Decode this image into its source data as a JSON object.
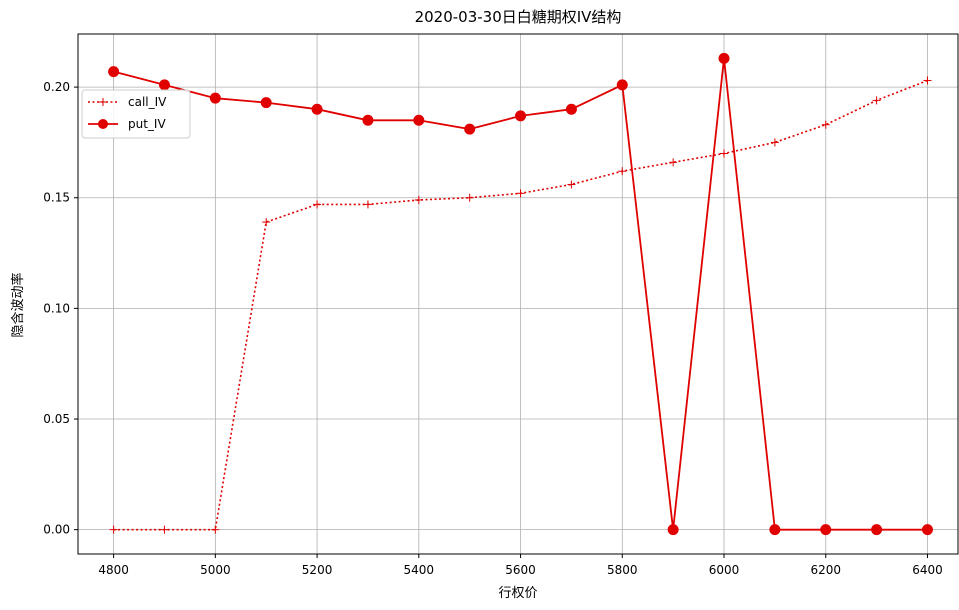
{
  "chart_data": {
    "type": "line",
    "title": "2020-03-30日白糖期权IV结构",
    "xlabel": "行权价",
    "ylabel": "隐含波动率",
    "x": [
      4800,
      4900,
      5000,
      5100,
      5200,
      5300,
      5400,
      5500,
      5600,
      5700,
      5800,
      5900,
      6000,
      6100,
      6200,
      6300,
      6400
    ],
    "xlim": [
      4730,
      6460
    ],
    "ylim": [
      -0.011,
      0.224
    ],
    "x_ticks": [
      "4800",
      "5000",
      "5200",
      "5400",
      "5600",
      "5800",
      "6000",
      "6200",
      "6400"
    ],
    "y_ticks": [
      "0.00",
      "0.05",
      "0.10",
      "0.15",
      "0.20"
    ],
    "grid": true,
    "legend_position": "upper-left",
    "series": [
      {
        "name": "call_IV",
        "color": "#e00000",
        "line_style": "dotted",
        "marker": "plus",
        "values": [
          0.0,
          0.0,
          0.0,
          0.139,
          0.147,
          0.147,
          0.149,
          0.15,
          0.152,
          0.156,
          0.162,
          0.166,
          0.17,
          0.175,
          0.183,
          0.194,
          0.203
        ]
      },
      {
        "name": "put_IV",
        "color": "#e00000",
        "line_style": "solid",
        "marker": "circle",
        "values": [
          0.207,
          0.201,
          0.195,
          0.193,
          0.19,
          0.185,
          0.185,
          0.181,
          0.187,
          0.19,
          0.201,
          0.0,
          0.213,
          0.0,
          0.0,
          0.0,
          0.0
        ]
      }
    ]
  }
}
